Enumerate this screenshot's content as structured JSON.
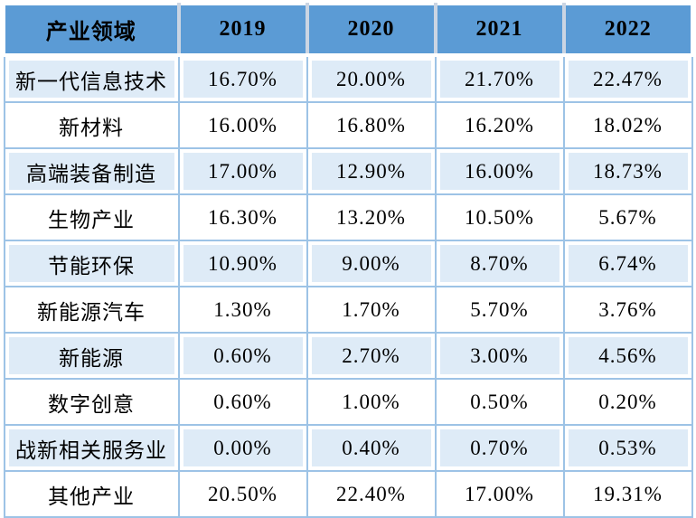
{
  "table": {
    "columns": [
      "产业领域",
      "2019",
      "2020",
      "2021",
      "2022"
    ],
    "rows": [
      {
        "label": "新一代信息技术",
        "values": [
          "16.70%",
          "20.00%",
          "21.70%",
          "22.47%"
        ]
      },
      {
        "label": "新材料",
        "values": [
          "16.00%",
          "16.80%",
          "16.20%",
          "18.02%"
        ]
      },
      {
        "label": "高端装备制造",
        "values": [
          "17.00%",
          "12.90%",
          "16.00%",
          "18.73%"
        ]
      },
      {
        "label": "生物产业",
        "values": [
          "16.30%",
          "13.20%",
          "10.50%",
          "5.67%"
        ]
      },
      {
        "label": "节能环保",
        "values": [
          "10.90%",
          "9.00%",
          "8.70%",
          "6.74%"
        ]
      },
      {
        "label": "新能源汽车",
        "values": [
          "1.30%",
          "1.70%",
          "5.70%",
          "3.76%"
        ]
      },
      {
        "label": "新能源",
        "values": [
          "0.60%",
          "2.70%",
          "3.00%",
          "4.56%"
        ]
      },
      {
        "label": "数字创意",
        "values": [
          "0.60%",
          "1.00%",
          "0.50%",
          "0.20%"
        ]
      },
      {
        "label": "战新相关服务业",
        "values": [
          "0.00%",
          "0.40%",
          "0.70%",
          "0.53%"
        ]
      },
      {
        "label": "其他产业",
        "values": [
          "20.50%",
          "22.40%",
          "17.00%",
          "19.31%"
        ]
      }
    ],
    "colors": {
      "header_bg": "#5B9BD5",
      "alt_row_bg": "#DEEBF7",
      "plain_row_bg": "#FFFFFF",
      "grid_line": "#9DC3E6",
      "header_separator": "#CBD5E3",
      "text": "#000000"
    }
  },
  "chart_data": {
    "type": "table",
    "title": "",
    "row_header_label": "产业领域",
    "categories": [
      "2019",
      "2020",
      "2021",
      "2022"
    ],
    "unit": "%",
    "series": [
      {
        "name": "新一代信息技术",
        "values": [
          16.7,
          20.0,
          21.7,
          22.47
        ]
      },
      {
        "name": "新材料",
        "values": [
          16.0,
          16.8,
          16.2,
          18.02
        ]
      },
      {
        "name": "高端装备制造",
        "values": [
          17.0,
          12.9,
          16.0,
          18.73
        ]
      },
      {
        "name": "生物产业",
        "values": [
          16.3,
          13.2,
          10.5,
          5.67
        ]
      },
      {
        "name": "节能环保",
        "values": [
          10.9,
          9.0,
          8.7,
          6.74
        ]
      },
      {
        "name": "新能源汽车",
        "values": [
          1.3,
          1.7,
          5.7,
          3.76
        ]
      },
      {
        "name": "新能源",
        "values": [
          0.6,
          2.7,
          3.0,
          4.56
        ]
      },
      {
        "name": "数字创意",
        "values": [
          0.6,
          1.0,
          0.5,
          0.2
        ]
      },
      {
        "name": "战新相关服务业",
        "values": [
          0.0,
          0.4,
          0.7,
          0.53
        ]
      },
      {
        "name": "其他产业",
        "values": [
          20.5,
          22.4,
          17.0,
          19.31
        ]
      }
    ]
  }
}
